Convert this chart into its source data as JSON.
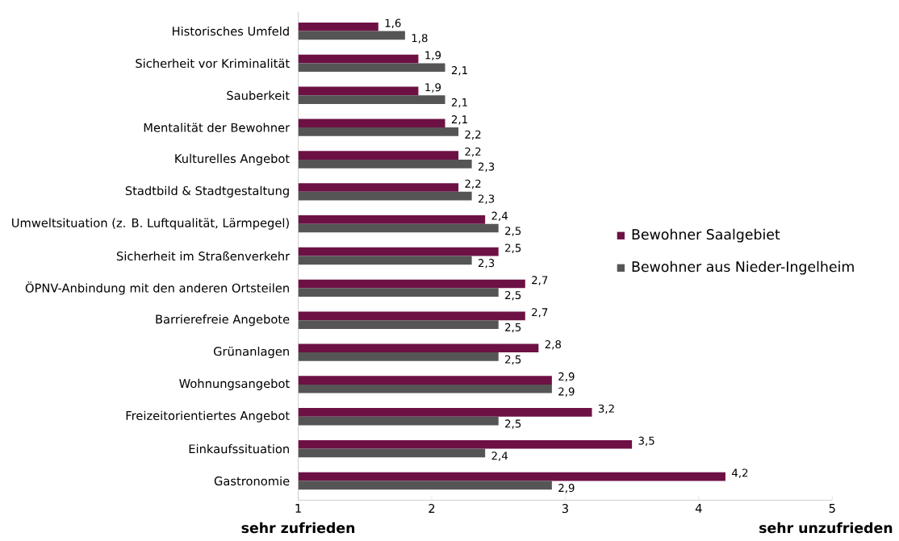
{
  "chart_data": {
    "type": "bar",
    "orientation": "horizontal",
    "categories": [
      "Historisches Umfeld",
      "Sicherheit vor Kriminalität",
      "Sauberkeit",
      "Mentalität der Bewohner",
      "Kulturelles Angebot",
      "Stadtbild & Stadtgestaltung",
      "Umweltsituation (z. B. Luftqualität, Lärmpegel)",
      "Sicherheit im Straßenverkehr",
      "ÖPNV-Anbindung mit den anderen Ortsteilen",
      "Barrierefreie Angebote",
      "Grünanlagen",
      "Wohnungsangebot",
      "Freizeitorientiertes Angebot",
      "Einkaufssituation",
      "Gastronomie"
    ],
    "series": [
      {
        "name": "Bewohner Saalgebiet",
        "color": "#6d1145",
        "values": [
          1.6,
          1.9,
          1.9,
          2.1,
          2.2,
          2.2,
          2.4,
          2.5,
          2.7,
          2.7,
          2.8,
          2.9,
          3.2,
          3.5,
          4.2
        ],
        "value_labels": [
          "1,6",
          "1,9",
          "1,9",
          "2,1",
          "2,2",
          "2,2",
          "2,4",
          "2,5",
          "2,7",
          "2,7",
          "2,8",
          "2,9",
          "3,2",
          "3,5",
          "4,2"
        ]
      },
      {
        "name": "Bewohner aus Nieder-Ingelheim",
        "color": "#555555",
        "values": [
          1.8,
          2.1,
          2.1,
          2.2,
          2.3,
          2.3,
          2.5,
          2.3,
          2.5,
          2.5,
          2.5,
          2.9,
          2.5,
          2.4,
          2.9
        ],
        "value_labels": [
          "1,8",
          "2,1",
          "2,1",
          "2,2",
          "2,3",
          "2,3",
          "2,5",
          "2,3",
          "2,5",
          "2,5",
          "2,5",
          "2,9",
          "2,5",
          "2,4",
          "2,9"
        ]
      }
    ],
    "xlim": [
      1,
      5
    ],
    "xticks": [
      1,
      2,
      3,
      4,
      5
    ],
    "legend": "right",
    "grid": false,
    "annotations": [
      "sehr zufrieden",
      "sehr unzufrieden"
    ]
  }
}
